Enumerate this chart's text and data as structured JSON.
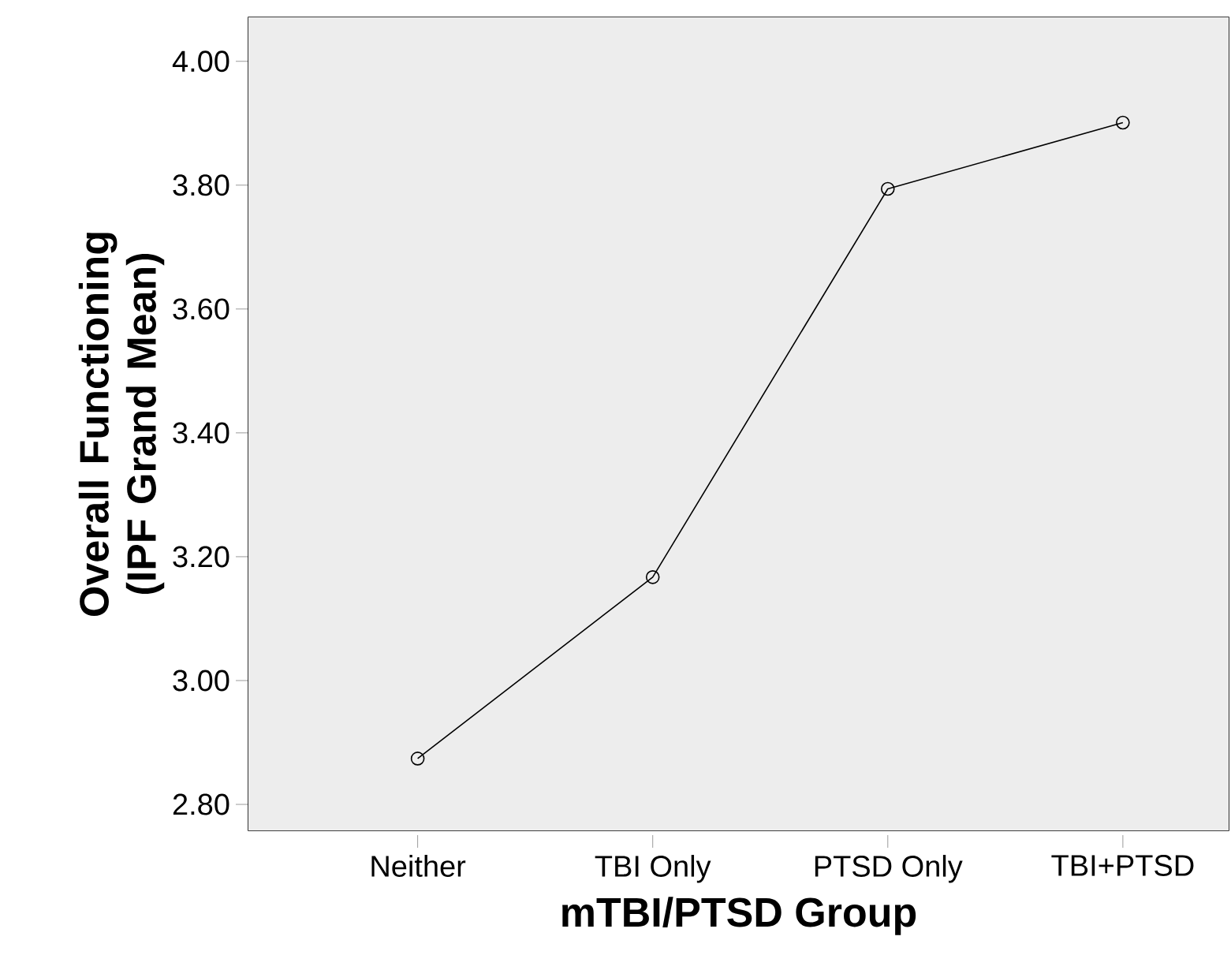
{
  "chart_data": {
    "type": "line",
    "xlabel": "mTBI/PTSD Group",
    "ylabel": "Overall Functioning (IPF Grand Mean)",
    "categories": [
      "Neither",
      "TBI Only",
      "PTSD Only",
      "TBI+PTSD"
    ],
    "series": [
      {
        "color": "#000000",
        "values": [
          2.874,
          3.167,
          3.794,
          3.901
        ]
      }
    ],
    "ylim": [
      2.758,
      4.071
    ],
    "yticks": [
      {
        "value": 2.8,
        "label": "2.80"
      },
      {
        "value": 3.0,
        "label": "3.00"
      },
      {
        "value": 3.2,
        "label": "3.20"
      },
      {
        "value": 3.4,
        "label": "3.40"
      },
      {
        "value": 3.6,
        "label": "3.60"
      },
      {
        "value": 3.8,
        "label": "3.80"
      },
      {
        "value": 4.0,
        "label": "4.00"
      }
    ],
    "marker": "circle",
    "line_style": "solid"
  }
}
